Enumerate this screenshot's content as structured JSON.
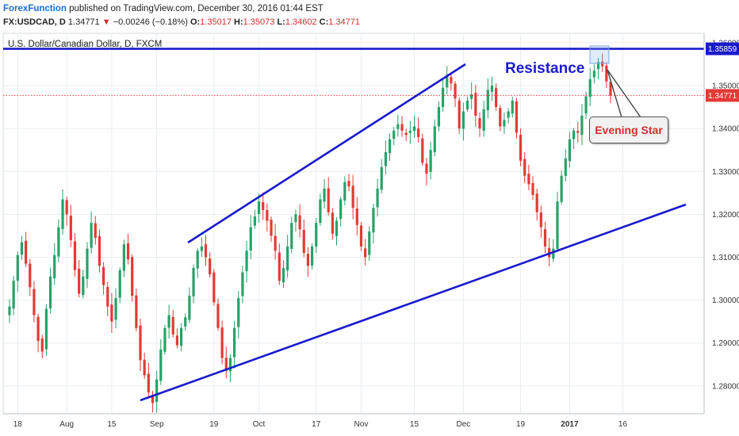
{
  "header": {
    "author": "ForexFunction",
    "published": "published on TradingView.com, December 30, 2016 01:44 EST",
    "symbol": "FX:USDCAD, D",
    "last": "1.34771",
    "arrow": "▼",
    "change": "−0.00246 (−0.18%)",
    "o_label": "O:",
    "o": "1.35017",
    "h_label": "H:",
    "h": "1.35073",
    "l_label": "L:",
    "l": "1.34602",
    "c_label": "C:",
    "c": "1.34771"
  },
  "colors": {
    "up": "#26a269",
    "down": "#e53935",
    "trendline": "#1a1acd",
    "current_price": "#e53935",
    "grid": "#e9eef2"
  },
  "chart_data": {
    "type": "candlestick",
    "title": "U.S. Dollar/Canadian Dollar, D, FXCM",
    "ylim": [
      1.2735,
      1.3622
    ],
    "y_ticks": [
      "1.36000",
      "1.35000",
      "1.34000",
      "1.33000",
      "1.32000",
      "1.31000",
      "1.30000",
      "1.29000",
      "1.28000"
    ],
    "x_labels": [
      "18",
      "Aug",
      "15",
      "Sep",
      "19",
      "Oct",
      "17",
      "Nov",
      "15",
      "Dec",
      "19",
      "2017",
      "16"
    ],
    "bold_x_labels": [
      "2017"
    ],
    "grid": true,
    "resistance_level": "1.35859",
    "current_price": "1.34771",
    "annotations": {
      "resistance": "Resistance",
      "pattern": "Evening Star"
    },
    "closes": [
      1.2985,
      1.3045,
      1.3105,
      1.3135,
      1.3085,
      1.303,
      1.2965,
      1.2905,
      1.288,
      1.298,
      1.3055,
      1.3105,
      1.317,
      1.3235,
      1.32,
      1.314,
      1.307,
      1.3015,
      1.3055,
      1.312,
      1.318,
      1.3145,
      1.308,
      1.3035,
      1.2985,
      1.295,
      1.3005,
      1.307,
      1.313,
      1.3095,
      1.301,
      1.2935,
      1.286,
      1.2825,
      1.2785,
      1.276,
      1.2815,
      1.2885,
      1.2935,
      1.2965,
      1.292,
      1.2895,
      1.2935,
      1.296,
      1.301,
      1.3075,
      1.3115,
      1.3125,
      1.31,
      1.306,
      1.2995,
      1.2935,
      1.2865,
      1.2835,
      1.2865,
      1.2935,
      1.3005,
      1.3065,
      1.3115,
      1.317,
      1.3195,
      1.323,
      1.321,
      1.3185,
      1.315,
      1.3115,
      1.3045,
      1.3075,
      1.3125,
      1.318,
      1.32,
      1.3165,
      1.311,
      1.308,
      1.3125,
      1.318,
      1.3235,
      1.326,
      1.3205,
      1.3155,
      1.3185,
      1.3235,
      1.3275,
      1.3265,
      1.3215,
      1.3175,
      1.3125,
      1.31,
      1.316,
      1.3215,
      1.326,
      1.331,
      1.3345,
      1.3375,
      1.3395,
      1.341,
      1.3395,
      1.3385,
      1.3395,
      1.3405,
      1.338,
      1.332,
      1.3295,
      1.335,
      1.3405,
      1.345,
      1.3495,
      1.3525,
      1.3505,
      1.347,
      1.34,
      1.344,
      1.3465,
      1.348,
      1.343,
      1.34,
      1.3445,
      1.349,
      1.35,
      1.345,
      1.3405,
      1.342,
      1.344,
      1.3465,
      1.339,
      1.3325,
      1.329,
      1.327,
      1.3245,
      1.3205,
      1.317,
      1.3125,
      1.31,
      1.312,
      1.323,
      1.329,
      1.333,
      1.3375,
      1.3395,
      1.339,
      1.343,
      1.3475,
      1.3515,
      1.3535,
      1.3555,
      1.3545,
      1.351,
      1.3477
    ],
    "x_label_index": [
      2,
      14,
      25,
      36,
      50,
      61,
      75,
      86,
      99,
      111,
      125,
      137,
      150
    ]
  }
}
